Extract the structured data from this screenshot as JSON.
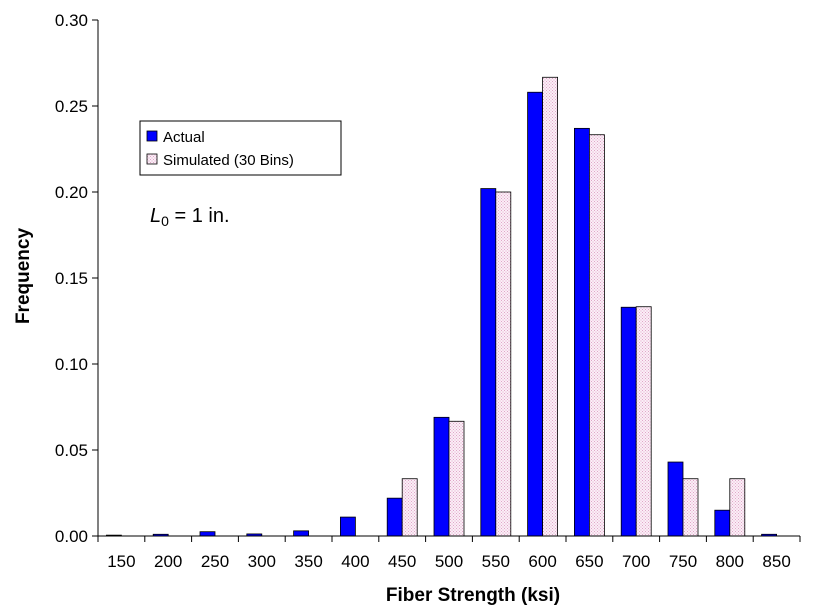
{
  "chart_data": {
    "type": "bar",
    "title": "",
    "xlabel": "Fiber Strength (ksi)",
    "ylabel": "Frequency",
    "ylim": [
      0,
      0.3
    ],
    "yticks": [
      "0.00",
      "0.05",
      "0.10",
      "0.15",
      "0.20",
      "0.25",
      "0.30"
    ],
    "categories": [
      "150",
      "200",
      "250",
      "300",
      "350",
      "400",
      "450",
      "500",
      "550",
      "600",
      "650",
      "700",
      "750",
      "800",
      "850"
    ],
    "series": [
      {
        "name": "Actual",
        "color": "#0000ff",
        "values": [
          0.0005,
          0.001,
          0.0025,
          0.0012,
          0.003,
          0.011,
          0.022,
          0.069,
          0.202,
          0.258,
          0.237,
          0.133,
          0.043,
          0.015,
          0.001
        ]
      },
      {
        "name": "Simulated (30 Bins)",
        "color": "#f6dcee",
        "values": [
          0,
          0,
          0,
          0,
          0,
          0,
          0.0333,
          0.0667,
          0.2,
          0.2667,
          0.2333,
          0.1333,
          0.0333,
          0.0333,
          0
        ]
      }
    ],
    "grid": false,
    "legend_position": "top-left",
    "annotation": {
      "symbol": "L",
      "subscript": "0",
      "rest": " = 1 in."
    }
  }
}
